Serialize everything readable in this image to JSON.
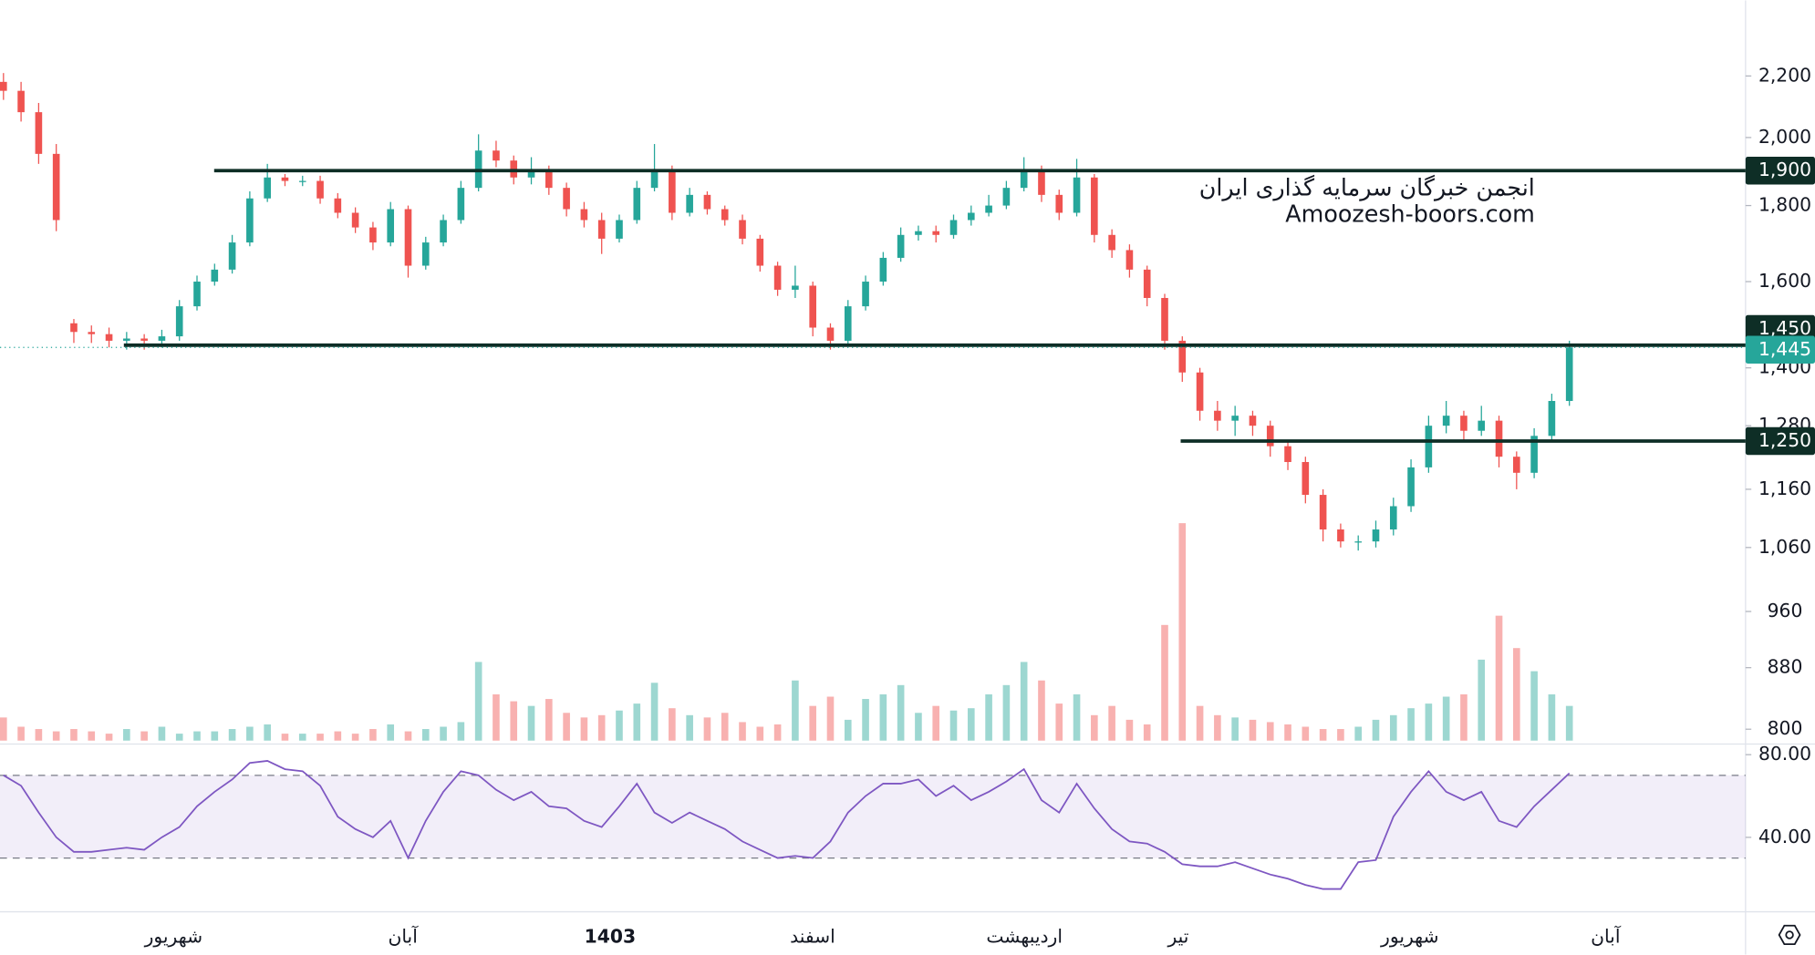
{
  "chart_data": {
    "type": "candlestick",
    "log_scale": true,
    "ylim": [
      786,
      2473
    ],
    "yticks": [
      800,
      880,
      960,
      {
        "value": 1060,
        "label": "1,060"
      },
      {
        "value": 1160,
        "label": "1,160"
      },
      {
        "value": 1280,
        "label": "1,280"
      },
      {
        "value": 1400,
        "label": "1,400"
      },
      {
        "value": 1600,
        "label": "1,600"
      },
      {
        "value": 1800,
        "label": "1,800"
      },
      {
        "value": 2000,
        "label": "2,000"
      },
      {
        "value": 2200,
        "label": "2,200"
      }
    ],
    "up_color": "#26a69a",
    "down_color": "#ef5350",
    "level_color": "#0e2e26",
    "levels": [
      {
        "value": 1900,
        "label": "1,900"
      },
      {
        "value": 1450,
        "label": "1,450"
      },
      {
        "value": 1250,
        "label": "1,250"
      }
    ],
    "last_price": {
      "value": 1445,
      "label": "1,445"
    },
    "watermark": [
      "انجمن خبرگان سرمایه گذاری ایران",
      "Amoozesh-boors.com"
    ],
    "x_labels": [
      "شهریور",
      "آبان",
      "1403",
      "اسفند",
      "اردیبهشت",
      "تیر",
      "شهریور",
      "آبان"
    ],
    "open": [
      2180,
      2150,
      2080,
      1950,
      1500,
      1480,
      1475,
      1460,
      1465,
      1460,
      1470,
      1540,
      1600,
      1630,
      1700,
      1820,
      1880,
      1870,
      1870,
      1820,
      1780,
      1740,
      1700,
      1790,
      1640,
      1700,
      1760,
      1850,
      1960,
      1930,
      1880,
      1900,
      1850,
      1790,
      1760,
      1710,
      1760,
      1850,
      1900,
      1780,
      1830,
      1790,
      1760,
      1710,
      1640,
      1580,
      1590,
      1490,
      1460,
      1540,
      1600,
      1660,
      1720,
      1730,
      1720,
      1760,
      1780,
      1800,
      1850,
      1900,
      1830,
      1780,
      1880,
      1720,
      1680,
      1630,
      1560,
      1460,
      1390,
      1310,
      1290,
      1300,
      1280,
      1240,
      1210,
      1150,
      1090,
      1070,
      1070,
      1090,
      1130,
      1200,
      1280,
      1300,
      1270,
      1290,
      1220,
      1190,
      1260,
      1330
    ],
    "high": [
      2210,
      2180,
      2110,
      1980,
      1510,
      1495,
      1490,
      1480,
      1475,
      1485,
      1555,
      1615,
      1645,
      1720,
      1840,
      1920,
      1890,
      1885,
      1885,
      1835,
      1795,
      1755,
      1810,
      1800,
      1715,
      1775,
      1870,
      2010,
      1990,
      1945,
      1940,
      1915,
      1865,
      1810,
      1780,
      1775,
      1870,
      1980,
      1915,
      1850,
      1840,
      1800,
      1775,
      1720,
      1650,
      1640,
      1600,
      1500,
      1555,
      1615,
      1675,
      1740,
      1745,
      1745,
      1775,
      1800,
      1830,
      1870,
      1940,
      1915,
      1845,
      1935,
      1890,
      1735,
      1695,
      1640,
      1570,
      1470,
      1400,
      1330,
      1320,
      1310,
      1290,
      1250,
      1220,
      1160,
      1100,
      1080,
      1105,
      1145,
      1215,
      1300,
      1330,
      1310,
      1320,
      1300,
      1230,
      1275,
      1345,
      1460
    ],
    "low": [
      2120,
      2050,
      1920,
      1730,
      1455,
      1455,
      1445,
      1440,
      1440,
      1445,
      1460,
      1530,
      1590,
      1620,
      1690,
      1810,
      1855,
      1855,
      1805,
      1765,
      1725,
      1680,
      1690,
      1610,
      1630,
      1690,
      1750,
      1840,
      1910,
      1860,
      1860,
      1830,
      1770,
      1740,
      1670,
      1700,
      1750,
      1840,
      1760,
      1770,
      1775,
      1745,
      1695,
      1625,
      1565,
      1560,
      1470,
      1440,
      1450,
      1530,
      1590,
      1650,
      1705,
      1700,
      1710,
      1745,
      1770,
      1790,
      1840,
      1810,
      1760,
      1770,
      1700,
      1660,
      1610,
      1540,
      1440,
      1370,
      1290,
      1270,
      1260,
      1260,
      1220,
      1195,
      1135,
      1070,
      1060,
      1055,
      1060,
      1080,
      1120,
      1190,
      1265,
      1250,
      1260,
      1200,
      1160,
      1180,
      1250,
      1320
    ],
    "close": [
      2150,
      2080,
      1950,
      1760,
      1480,
      1475,
      1460,
      1465,
      1460,
      1470,
      1540,
      1600,
      1630,
      1700,
      1820,
      1880,
      1870,
      1870,
      1820,
      1780,
      1740,
      1700,
      1790,
      1640,
      1700,
      1760,
      1850,
      1960,
      1930,
      1880,
      1900,
      1850,
      1790,
      1760,
      1710,
      1760,
      1850,
      1900,
      1780,
      1830,
      1790,
      1760,
      1710,
      1640,
      1580,
      1590,
      1490,
      1460,
      1540,
      1600,
      1660,
      1720,
      1730,
      1720,
      1760,
      1780,
      1800,
      1850,
      1900,
      1830,
      1780,
      1880,
      1720,
      1680,
      1630,
      1560,
      1460,
      1390,
      1310,
      1290,
      1300,
      1280,
      1240,
      1210,
      1150,
      1090,
      1070,
      1070,
      1090,
      1130,
      1200,
      1280,
      1300,
      1270,
      1290,
      1220,
      1190,
      1260,
      1330,
      1445
    ],
    "vlim": [
      0,
      200
    ],
    "volume": [
      20,
      12,
      10,
      8,
      10,
      8,
      6,
      10,
      8,
      12,
      6,
      8,
      8,
      10,
      12,
      14,
      6,
      6,
      6,
      8,
      6,
      10,
      14,
      8,
      10,
      12,
      16,
      68,
      40,
      34,
      30,
      36,
      24,
      20,
      22,
      26,
      32,
      50,
      28,
      22,
      20,
      24,
      16,
      12,
      14,
      52,
      30,
      38,
      18,
      36,
      40,
      48,
      24,
      30,
      26,
      28,
      40,
      48,
      68,
      52,
      32,
      40,
      22,
      30,
      18,
      14,
      100,
      188,
      30,
      22,
      20,
      18,
      16,
      14,
      12,
      10,
      10,
      12,
      18,
      22,
      28,
      32,
      38,
      40,
      70,
      108,
      80,
      60,
      40,
      30
    ],
    "rsi": {
      "color": "#7e57c2",
      "ylim": [
        4,
        84
      ],
      "yticks": [
        {
          "value": 80,
          "label": "80.00"
        },
        {
          "value": 40,
          "label": "40.00"
        }
      ],
      "bands": [
        30,
        70
      ],
      "values": [
        70,
        65,
        52,
        40,
        33,
        33,
        34,
        35,
        34,
        40,
        45,
        55,
        62,
        68,
        76,
        77,
        73,
        72,
        65,
        50,
        44,
        40,
        48,
        30,
        48,
        62,
        72,
        70,
        63,
        58,
        62,
        55,
        54,
        48,
        45,
        55,
        66,
        52,
        47,
        52,
        48,
        44,
        38,
        34,
        30,
        31,
        30,
        38,
        52,
        60,
        66,
        66,
        68,
        60,
        65,
        58,
        62,
        67,
        73,
        58,
        52,
        66,
        54,
        44,
        38,
        37,
        33,
        27,
        26,
        26,
        28,
        25,
        22,
        20,
        17,
        15,
        15,
        28,
        29,
        50,
        62,
        72,
        62,
        58,
        62,
        48,
        45,
        55,
        63,
        71
      ]
    }
  }
}
